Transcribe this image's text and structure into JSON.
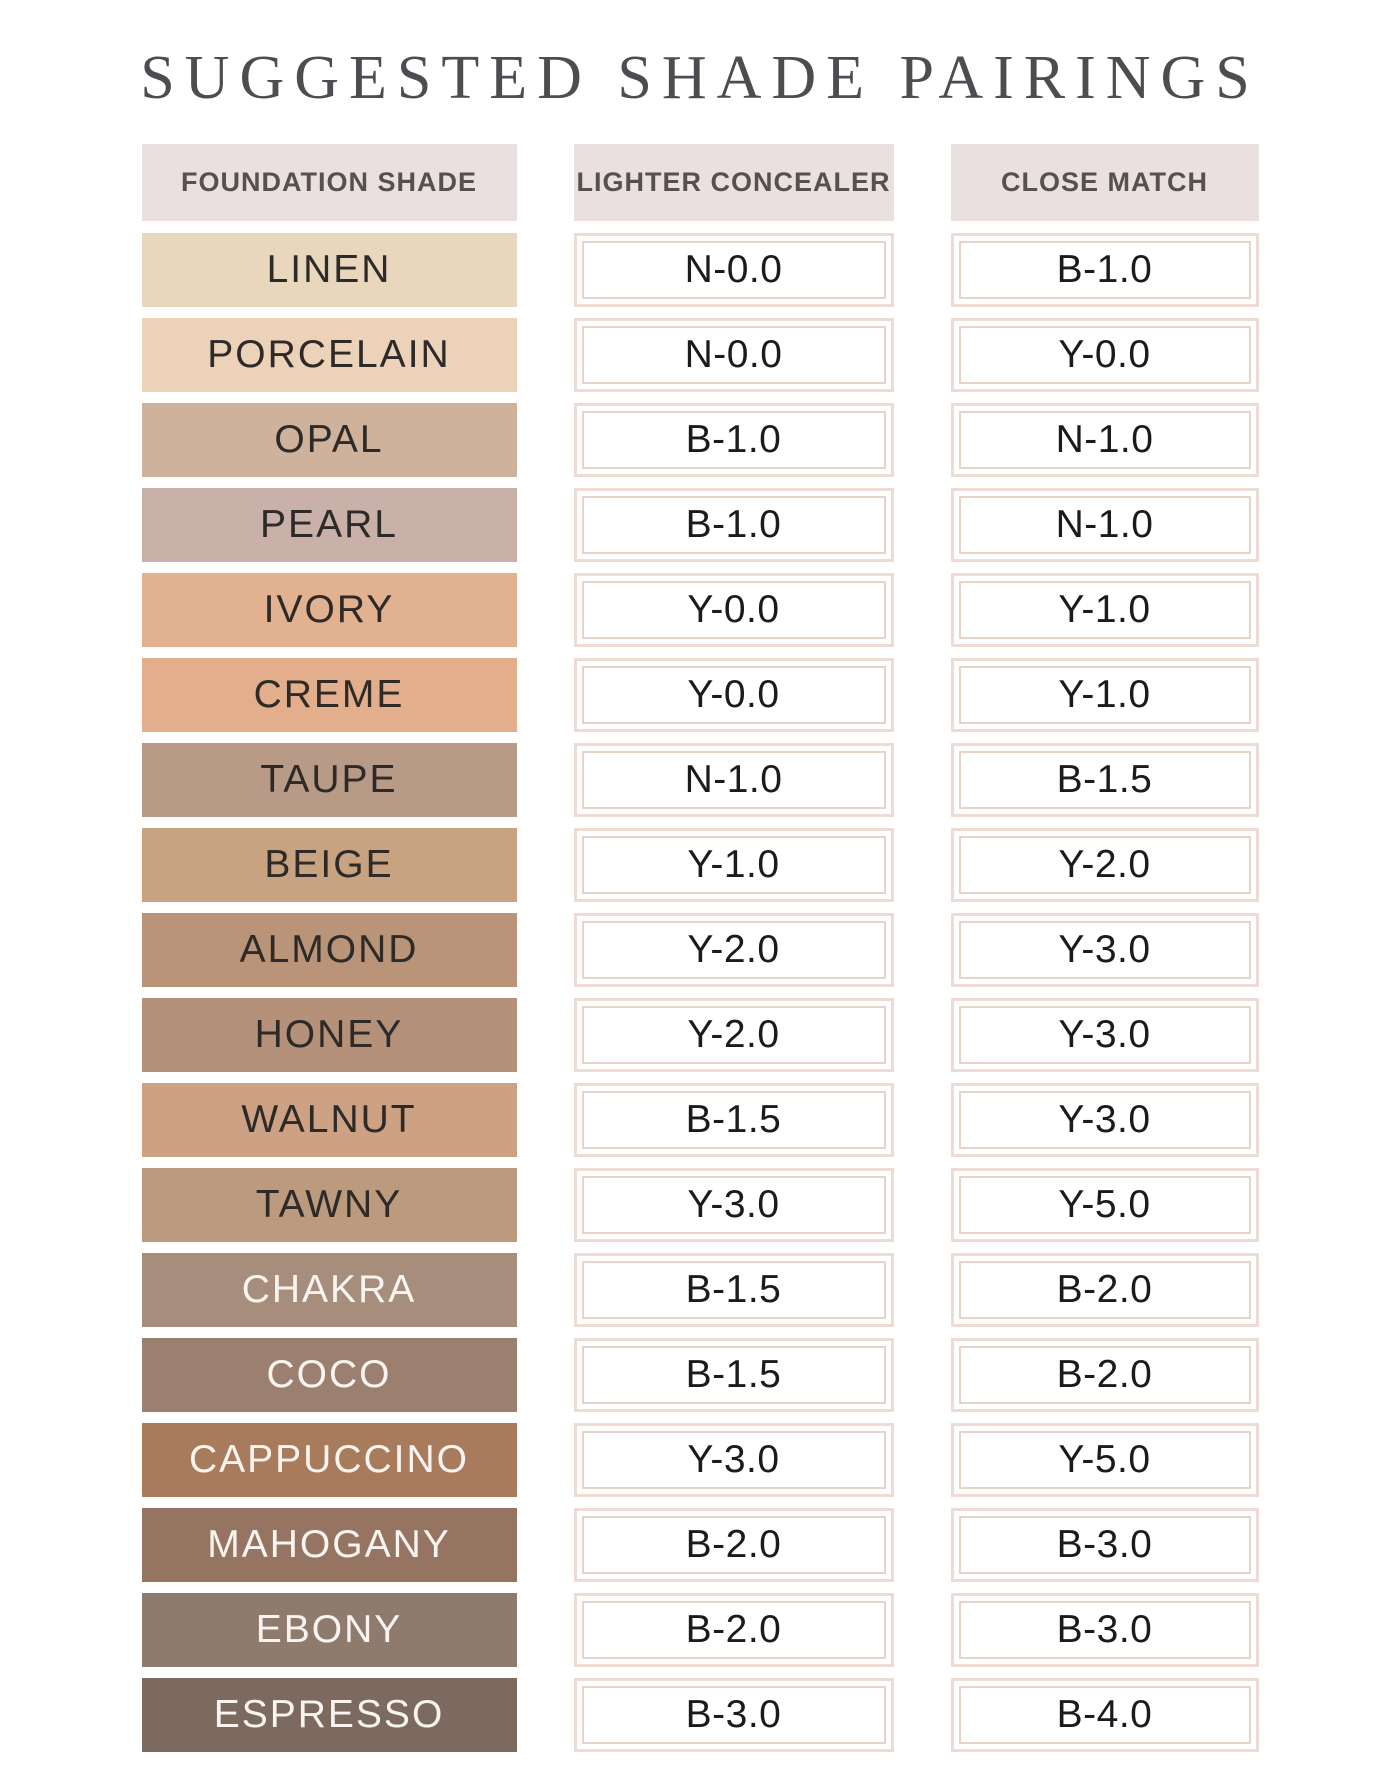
{
  "title": "SUGGESTED SHADE PAIRINGS",
  "columns": [
    "FOUNDATION SHADE",
    "LIGHTER CONCEALER",
    "CLOSE MATCH"
  ],
  "theme": {
    "title_color": "#4d4c51",
    "header_bg": "#ebe0e0",
    "header_text": "#56504e",
    "cell_border_outer": "#eedbd4",
    "cell_border_inner": "#e8d3ca",
    "dark_label": "#2d2a28",
    "light_label": "#f9f4ef"
  },
  "rows": [
    {
      "shade": "LINEN",
      "swatch": "#e8d7bd",
      "label_color": "#2d2a28",
      "lighter": "N-0.0",
      "close": "B-1.0"
    },
    {
      "shade": "PORCELAIN",
      "swatch": "#ecd2b9",
      "label_color": "#2d2a28",
      "lighter": "N-0.0",
      "close": "Y-0.0"
    },
    {
      "shade": "OPAL",
      "swatch": "#cfb29c",
      "label_color": "#2d2a28",
      "lighter": "B-1.0",
      "close": "N-1.0"
    },
    {
      "shade": "PEARL",
      "swatch": "#c9b0a8",
      "label_color": "#2d2a28",
      "lighter": "B-1.0",
      "close": "N-1.0"
    },
    {
      "shade": "IVORY",
      "swatch": "#e2b190",
      "label_color": "#2d2a28",
      "lighter": "Y-0.0",
      "close": "Y-1.0"
    },
    {
      "shade": "CREME",
      "swatch": "#e2ae8b",
      "label_color": "#2d2a28",
      "lighter": "Y-0.0",
      "close": "Y-1.0"
    },
    {
      "shade": "TAUPE",
      "swatch": "#b79b86",
      "label_color": "#2d2a28",
      "lighter": "N-1.0",
      "close": "B-1.5"
    },
    {
      "shade": "BEIGE",
      "swatch": "#c7a381",
      "label_color": "#2d2a28",
      "lighter": "Y-1.0",
      "close": "Y-2.0"
    },
    {
      "shade": "ALMOND",
      "swatch": "#b99478",
      "label_color": "#2d2a28",
      "lighter": "Y-2.0",
      "close": "Y-3.0"
    },
    {
      "shade": "HONEY",
      "swatch": "#b6917a",
      "label_color": "#2d2a28",
      "lighter": "Y-2.0",
      "close": "Y-3.0"
    },
    {
      "shade": "WALNUT",
      "swatch": "#cda183",
      "label_color": "#2d2a28",
      "lighter": "B-1.5",
      "close": "Y-3.0"
    },
    {
      "shade": "TAWNY",
      "swatch": "#bc9a7e",
      "label_color": "#2d2a28",
      "lighter": "Y-3.0",
      "close": "Y-5.0"
    },
    {
      "shade": "CHAKRA",
      "swatch": "#a78d7b",
      "label_color": "#f9f4ef",
      "lighter": "B-1.5",
      "close": "B-2.0"
    },
    {
      "shade": "COCO",
      "swatch": "#9b8070",
      "label_color": "#f9f4ef",
      "lighter": "B-1.5",
      "close": "B-2.0"
    },
    {
      "shade": "CAPPUCCINO",
      "swatch": "#a87b5d",
      "label_color": "#f9f4ef",
      "lighter": "Y-3.0",
      "close": "Y-5.0"
    },
    {
      "shade": "MAHOGANY",
      "swatch": "#957461",
      "label_color": "#f9f4ef",
      "lighter": "B-2.0",
      "close": "B-3.0"
    },
    {
      "shade": "EBONY",
      "swatch": "#8f7a6e",
      "label_color": "#f9f4ef",
      "lighter": "B-2.0",
      "close": "B-3.0"
    },
    {
      "shade": "ESPRESSO",
      "swatch": "#7c6a60",
      "label_color": "#f9f4ef",
      "lighter": "B-3.0",
      "close": "B-4.0"
    }
  ]
}
